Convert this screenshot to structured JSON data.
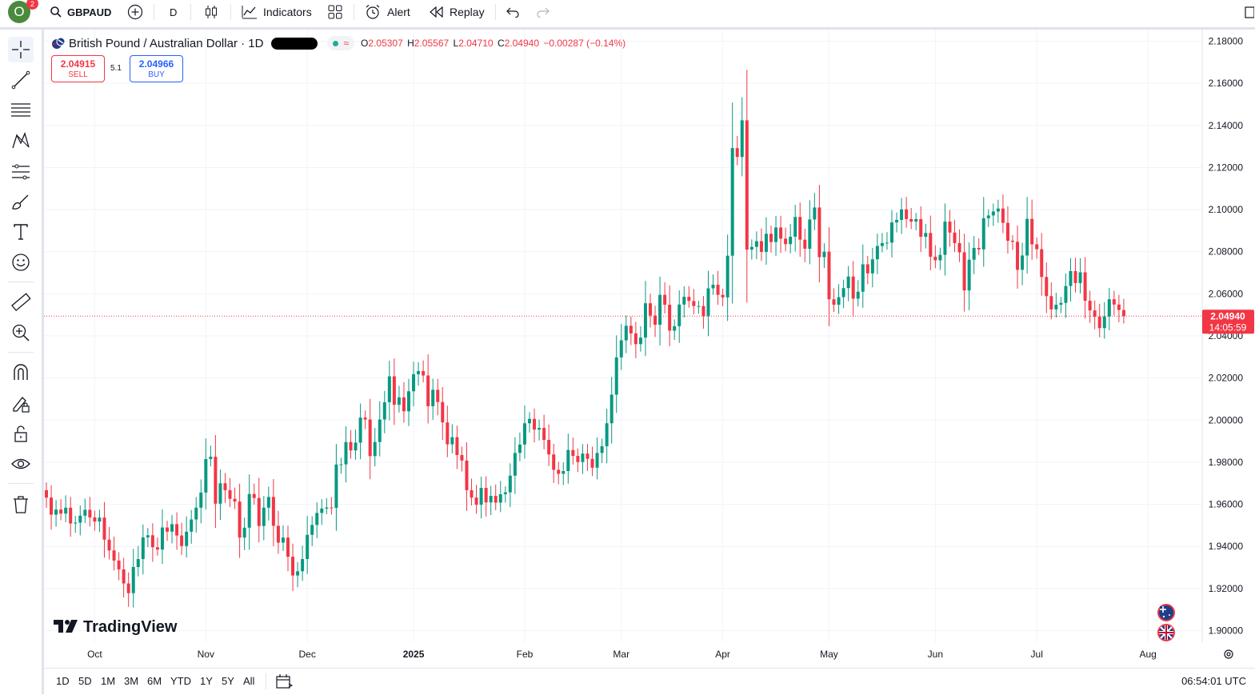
{
  "topbar": {
    "avatar_letter": "O",
    "notification_count": "2",
    "symbol": "GBPAUD",
    "interval": "D",
    "indicators_label": "Indicators",
    "alert_label": "Alert",
    "replay_label": "Replay"
  },
  "legend": {
    "title": "British Pound / Australian Dollar · 1D",
    "open_label": "O",
    "open": "2.05307",
    "high_label": "H",
    "high": "2.05567",
    "low_label": "L",
    "low": "2.04710",
    "close_label": "C",
    "close": "2.04940",
    "change": "−0.00287 (−0.14%)"
  },
  "trade": {
    "sell_price": "2.04915",
    "sell_label": "SELL",
    "buy_price": "2.04966",
    "buy_label": "BUY",
    "spread": "5.1"
  },
  "price_tag": {
    "price": "2.04940",
    "countdown": "14:05:59"
  },
  "watermark": "TradingView",
  "bottombar": {
    "ranges": [
      "1D",
      "5D",
      "1M",
      "3M",
      "6M",
      "YTD",
      "1Y",
      "5Y",
      "All"
    ],
    "time": "06:54:01 UTC"
  },
  "colors": {
    "up": "#089981",
    "down": "#f23645",
    "grid": "#f0f3fa",
    "price_line": "#f23645"
  },
  "icons": [
    "crosshair-icon",
    "trend-line-icon",
    "fib-icon",
    "pattern-icon",
    "projection-icon",
    "brush-icon",
    "text-icon",
    "emoji-icon",
    "ruler-icon",
    "zoom-in-icon",
    "magnet-icon",
    "draw-lock-icon",
    "lock-icon",
    "eye-icon",
    "trash-icon"
  ],
  "chart_data": {
    "type": "candlestick",
    "title": "British Pound / Australian Dollar · 1D",
    "y_ticks": [
      "2.18000",
      "2.16000",
      "2.14000",
      "2.12000",
      "2.10000",
      "2.08000",
      "2.06000",
      "2.04000",
      "2.02000",
      "2.00000",
      "1.98000",
      "1.96000",
      "1.94000",
      "1.92000",
      "1.90000"
    ],
    "ylim": [
      1.8945,
      2.1855
    ],
    "x_ticks": [
      {
        "label": "Oct",
        "date": "2024-10-01"
      },
      {
        "label": "Nov",
        "date": "2024-11-01"
      },
      {
        "label": "Dec",
        "date": "2024-12-02"
      },
      {
        "label": "2025",
        "date": "2025-01-01"
      },
      {
        "label": "Feb",
        "date": "2025-02-03"
      },
      {
        "label": "Mar",
        "date": "2025-03-03"
      },
      {
        "label": "Apr",
        "date": "2025-04-01"
      },
      {
        "label": "May",
        "date": "2025-05-01"
      },
      {
        "label": "Jun",
        "date": "2025-06-02"
      },
      {
        "label": "Jul",
        "date": "2025-07-01"
      },
      {
        "label": "Aug",
        "date": "2025-08-01"
      }
    ],
    "last_price": 2.0494,
    "closes": [
      1.9632,
      1.9551,
      1.9575,
      1.9556,
      1.9584,
      1.9509,
      1.9513,
      1.9546,
      1.9574,
      1.9538,
      1.9518,
      1.9537,
      1.9432,
      1.9381,
      1.9333,
      1.9291,
      1.9224,
      1.9178,
      1.9302,
      1.934,
      1.9443,
      1.9453,
      1.9396,
      1.9385,
      1.949,
      1.947,
      1.9506,
      1.9452,
      1.9402,
      1.947,
      1.9528,
      1.9584,
      1.9656,
      1.9815,
      1.9826,
      1.9603,
      1.97,
      1.9667,
      1.9626,
      1.9613,
      1.9442,
      1.9489,
      1.9649,
      1.963,
      1.9497,
      1.9584,
      1.9635,
      1.9498,
      1.9418,
      1.9442,
      1.9351,
      1.9262,
      1.9282,
      1.934,
      1.9455,
      1.9502,
      1.9559,
      1.958,
      1.9585,
      1.9583,
      1.9789,
      1.979,
      1.9896,
      1.9856,
      1.9893,
      2.0012,
      2.0003,
      1.9829,
      1.9896,
      2.0003,
      2.0085,
      2.0208,
      2.0073,
      2.0108,
      2.0042,
      2.0137,
      2.0218,
      2.0233,
      2.0212,
      2.0066,
      2.0144,
      2.0086,
      1.9989,
      1.9885,
      1.9919,
      1.9834,
      1.9808,
      1.9667,
      1.9632,
      1.9598,
      1.9678,
      1.9609,
      1.964,
      1.9608,
      1.9648,
      1.9657,
      1.9736,
      1.9844,
      1.9884,
      1.9985,
      2.0006,
      1.9955,
      1.9963,
      1.9906,
      1.9837,
      1.9764,
      1.9745,
      1.9758,
      1.9858,
      1.983,
      1.9801,
      1.9841,
      1.9816,
      1.9774,
      1.9844,
      1.9876,
      1.9985,
      2.0121,
      2.0298,
      2.0379,
      2.0448,
      2.0412,
      2.0361,
      2.0392,
      2.0555,
      2.0497,
      2.0453,
      2.0595,
      2.0548,
      2.0425,
      2.0446,
      2.0549,
      2.0586,
      2.0566,
      2.0542,
      2.0542,
      2.0494,
      2.0626,
      2.0643,
      2.0595,
      2.0583,
      2.0781,
      2.1292,
      2.125,
      2.1424,
      2.081,
      2.0823,
      2.085,
      2.0799,
      2.0885,
      2.0846,
      2.0915,
      2.0862,
      2.0836,
      2.0871,
      2.0965,
      2.0857,
      2.0814,
      2.0953,
      2.101,
      2.0774,
      2.08,
      2.0574,
      2.0548,
      2.0584,
      2.0627,
      2.0682,
      2.0577,
      2.061,
      2.074,
      2.0697,
      2.0764,
      2.0827,
      2.0841,
      2.0843,
      2.0939,
      2.0951,
      2.1001,
      2.0955,
      2.0943,
      2.0955,
      2.0871,
      2.0889,
      2.0776,
      2.0759,
      2.0785,
      2.0943,
      2.0891,
      2.0841,
      2.0797,
      2.0616,
      2.0762,
      2.0818,
      2.0811,
      2.0959,
      2.0972,
      2.0991,
      2.1005,
      2.0937,
      2.0852,
      2.0847,
      2.0714,
      2.0782,
      2.0956,
      2.0835,
      2.0812,
      2.068,
      2.0589,
      2.0526,
      2.0548,
      2.0557,
      2.0637,
      2.0708,
      2.0651,
      2.0702,
      2.0567,
      2.0521,
      2.0491,
      2.0437,
      2.0492,
      2.0574,
      2.0549,
      2.0523,
      2.0494
    ]
  }
}
